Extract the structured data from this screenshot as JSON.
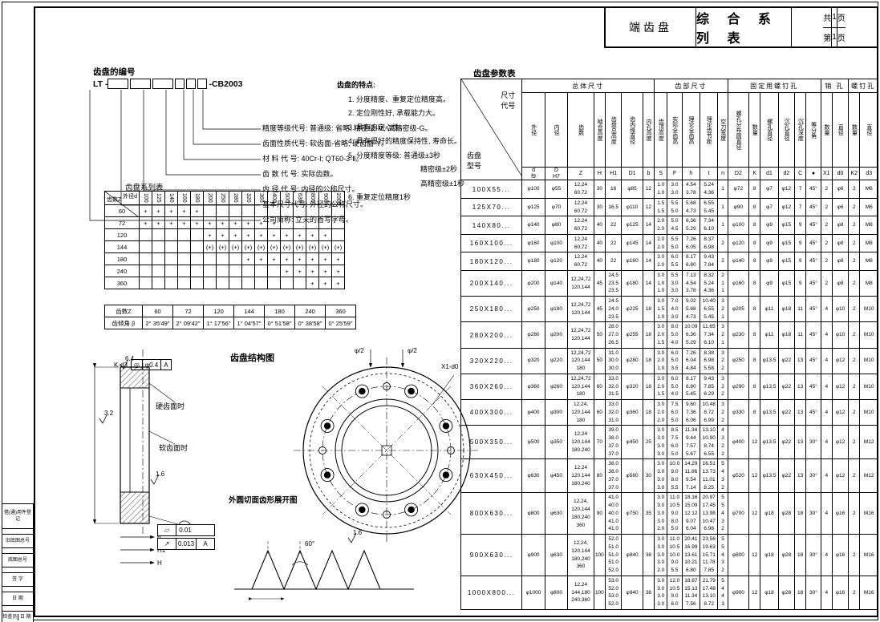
{
  "sheet": {
    "product": "端齿盘",
    "title": "综 合 系 列 表",
    "pages_total_label": "共",
    "pages_total": "1",
    "page_label": "页",
    "page_current_label": "第",
    "page_current": "1"
  },
  "margin_blocks": [
    "借(通)用件登记",
    "旧底图总号",
    "底图总号",
    "签  字",
    "日  期"
  ],
  "margin_bottom": {
    "left": "检查员",
    "right": "日 期"
  },
  "numbering": {
    "title": "齿盘的编号",
    "prefix": "LT -",
    "suffix": "-CB2003",
    "legend": [
      "精度等级代号: 普通级: 省略; 精密级-M; 高精密级-G。",
      "齿面性质代号: 软齿面-省略; 硬齿面-Y。",
      "材 料 代 号: 40Cr-Ⅰ; QT60-3-Ⅱ。",
      "齿 数 代 号: 实际齿数。",
      "内 径 代 号: 内径的公称尺寸。",
      "基本尺寸代号: 外径的公称尺寸。",
      "公司简称: 立天的首写字母。"
    ]
  },
  "features": {
    "title": "齿盘的特点:",
    "items": [
      "1. 分度精度、重复定位精度高。",
      "2. 定位刚性好, 承载能力大。",
      "3. 具有自定心性。",
      "4. 具有很好的精度保持性, 寿命长。",
      "5. 分度精度等级: 普通级±3秒",
      "精密级±2秒",
      "高精密级±1秒",
      "6. 重复定位精度1秒"
    ]
  },
  "series_table": {
    "title": "齿盘系列表",
    "corner_top": "外径d",
    "corner_bottom": "齿数Z",
    "columns": [
      "100",
      "125",
      "140",
      "160",
      "180",
      "200",
      "250",
      "280",
      "320",
      "360",
      "400",
      "500",
      "630",
      "800",
      "900",
      "1000"
    ],
    "rows": [
      {
        "z": "60",
        "marks": [
          "+",
          "+",
          "+",
          "+",
          "+",
          "",
          "",
          "",
          "",
          "",
          "",
          "",
          "",
          "",
          "",
          ""
        ]
      },
      {
        "z": "72",
        "marks": [
          "+",
          "+",
          "+",
          "+",
          "+",
          "+",
          "+",
          "+",
          "+",
          "+",
          "+",
          "",
          "",
          "",
          "",
          ""
        ]
      },
      {
        "z": "120",
        "marks": [
          "",
          "",
          "",
          "",
          "",
          "+",
          "+",
          "+",
          "+",
          "+",
          "+",
          "+",
          "+",
          "+",
          "+",
          ""
        ]
      },
      {
        "z": "144",
        "marks": [
          "",
          "",
          "",
          "",
          "",
          "(+)",
          "(+)",
          "(+)",
          "(+)",
          "(+)",
          "(+)",
          "(+)",
          "(+)",
          "(+)",
          "(+)",
          "(+)"
        ]
      },
      {
        "z": "180",
        "marks": [
          "",
          "",
          "",
          "",
          "",
          "",
          "",
          "",
          "+",
          "+",
          "+",
          "+",
          "+",
          "+",
          "+",
          "+"
        ]
      },
      {
        "z": "240",
        "marks": [
          "",
          "",
          "",
          "",
          "",
          "",
          "",
          "",
          "",
          "",
          "",
          "+",
          "+",
          "+",
          "+",
          "+"
        ]
      },
      {
        "z": "360",
        "marks": [
          "",
          "",
          "",
          "",
          "",
          "",
          "",
          "",
          "",
          "",
          "",
          "",
          "",
          "+",
          "+",
          "+"
        ]
      }
    ]
  },
  "angle_table": {
    "header_label": "齿数Z",
    "row_label": "齿倾角 β",
    "columns": [
      "60",
      "72",
      "120",
      "144",
      "180",
      "240",
      "360"
    ],
    "values": [
      "2° 35′49″",
      "2° 09′42″",
      "1° 17′56″",
      "1° 04′57″",
      "0° 51′58″",
      "0° 38′58″",
      "0° 25′59″"
    ]
  },
  "figures": {
    "structure_title": "齿盘结构图",
    "profile_title": "外圆切面齿形展开图",
    "hard_face_label": "硬齿面时",
    "soft_face_label": "软齿面时",
    "callout_screw": "K-d3",
    "callout_pin": "X1-d0",
    "datum_label": "A",
    "pos_tol_symbol": "◎",
    "pos_tol_value": "φ0.4",
    "pos_tol_datum": "A",
    "tol1_symbol": "▱",
    "tol1_value": "0.01",
    "tol2_symbol": "↗",
    "tol2_value": "0.013",
    "tol2_datum": "A",
    "dim_phi2_left": "φ/2",
    "dim_phi2_right": "φ/2",
    "angle_60": "60°",
    "rough_1": "6.4",
    "rough_2": "3.2",
    "rough_3": "1.6",
    "dim_b": "b",
    "dim_h1": "H1",
    "dim_h": "H"
  },
  "param_table": {
    "title": "齿盘参数表",
    "corner": {
      "top": "尺寸",
      "top2": "代号",
      "bottom": "齿盘",
      "bottom2": "型号"
    },
    "groups": [
      "总体尺寸",
      "齿部尺寸",
      "固定用螺钉孔",
      "销 孔",
      "螺钉孔"
    ],
    "group_spans": [
      7,
      5,
      6,
      2,
      2
    ],
    "columns": [
      "外径",
      "内径",
      "齿数",
      "啮合高度",
      "齿盘总高度",
      "齿内缘直径",
      "内孔高度",
      "齿顶高度",
      "实际全齿高",
      "理论全齿高",
      "理论齿节距",
      "空刀宽度",
      "螺孔分布圆直径",
      "数量",
      "螺孔直径",
      "沉孔直径",
      "沉孔深度",
      "等分角",
      "数量",
      "直径",
      "数量",
      "直径"
    ],
    "symbols": [
      "d\nf9",
      "D\nH7",
      "Z",
      "H",
      "H1",
      "D1",
      "b",
      "S",
      "F",
      "h",
      "t",
      "n",
      "D2",
      "K",
      "d1",
      "d2",
      "C",
      "●",
      "X1",
      "d0",
      "K2",
      "d3"
    ],
    "rows": [
      {
        "model": "100X55...",
        "values": [
          "φ100",
          "φ55",
          "12,24\n60,72",
          "30",
          "16",
          "φ85",
          "12",
          "1.0\n1.0",
          "3.0\n3.0",
          "4.54\n3.78",
          "5.24\n4.36",
          "1",
          "φ72",
          "8",
          "φ7",
          "φ12",
          "7",
          "45°",
          "2",
          "φ6",
          "2",
          "M6"
        ]
      },
      {
        "model": "125X70...",
        "values": [
          "φ125",
          "φ70",
          "12,24\n60,72",
          "30",
          "16.5",
          "φ110",
          "12",
          "1.5\n1.5",
          "5.5\n5.0",
          "5.68\n4.73",
          "6.55\n5.45",
          "1",
          "φ90",
          "8",
          "φ7",
          "φ12",
          "7",
          "45°",
          "2",
          "φ6",
          "2",
          "M6"
        ]
      },
      {
        "model": "140X80...",
        "values": [
          "φ140",
          "φ80",
          "12,24\n60,72",
          "40",
          "22",
          "φ125",
          "14",
          "2.0\n2.0",
          "5.0\n4.5",
          "6.36\n5.29",
          "7.34\n6.10",
          "1",
          "φ100",
          "8",
          "φ9",
          "φ15",
          "9",
          "45°",
          "2",
          "φ8",
          "2",
          "M8"
        ]
      },
      {
        "model": "160X100...",
        "values": [
          "φ160",
          "φ100",
          "12,24\n60,72",
          "40",
          "22",
          "φ145",
          "14",
          "2.0\n2.0",
          "5.5\n5.0",
          "7.26\n6.05",
          "8.37\n6.98",
          "2",
          "φ120",
          "8",
          "φ9",
          "φ15",
          "9",
          "45°",
          "2",
          "φ8",
          "2",
          "M8"
        ]
      },
      {
        "model": "180X120...",
        "values": [
          "φ180",
          "φ120",
          "12,24\n60,72",
          "40",
          "22",
          "φ160",
          "14",
          "3.0\n2.0",
          "6.0\n5.5",
          "8.17\n6.80",
          "9.43\n7.84",
          "2",
          "φ140",
          "8",
          "φ9",
          "φ15",
          "9",
          "45°",
          "2",
          "φ8",
          "2",
          "M8"
        ]
      },
      {
        "model": "200X140...",
        "values": [
          "φ200",
          "φ140",
          "12,24,72\n120,144",
          "45",
          "24.5\n23.5\n23.5",
          "φ180",
          "14",
          "3.0\n1.0\n1.0",
          "5.5\n3.0\n3.0",
          "7.13\n4.54\n3.78",
          "8.32\n5.24\n4.36",
          "2\n1\n1",
          "φ160",
          "8",
          "φ9",
          "φ15",
          "9",
          "45°",
          "2",
          "φ8",
          "2",
          "M8"
        ]
      },
      {
        "model": "250X180...",
        "values": [
          "φ250",
          "φ180",
          "12,24,72\n120,144",
          "45",
          "24.5\n24.0\n23.5",
          "φ225",
          "18",
          "3.0\n1.5\n1.0",
          "7.0\n4.0\n3.0",
          "9.02\n5.68\n4.73",
          "10.40\n6.55\n5.45",
          "3\n2\n1",
          "φ205",
          "8",
          "φ11",
          "φ18",
          "11",
          "45°",
          "4",
          "φ10",
          "2",
          "M10"
        ]
      },
      {
        "model": "280X200...",
        "values": [
          "φ280",
          "φ200",
          "12,24,72\n120,144",
          "50",
          "28.0\n27.0\n26.5",
          "φ255",
          "18",
          "3.0\n2.0\n1.5",
          "8.0\n5.0\n4.0",
          "10.09\n6.36\n5.29",
          "11.65\n7.34\n6.10",
          "3\n2\n1",
          "φ230",
          "8",
          "φ11",
          "φ18",
          "11",
          "45°",
          "4",
          "φ10",
          "2",
          "M10"
        ]
      },
      {
        "model": "320X220...",
        "values": [
          "φ320",
          "φ220",
          "12,24,72\n120,144\n180",
          "50",
          "31.0\n30.0\n30.0",
          "φ280",
          "18",
          "3.0\n2.0\n1.0",
          "6.0\n5.0\n3.5",
          "7.26\n6.04\n4.84",
          "8.38\n6.98\n5.58",
          "3\n2\n2",
          "φ250",
          "8",
          "φ13.5",
          "φ22",
          "13",
          "45°",
          "4",
          "φ12",
          "2",
          "M10"
        ]
      },
      {
        "model": "360X260...",
        "values": [
          "φ360",
          "φ260",
          "12,24,72\n120,144\n180",
          "60",
          "33.0\n32.0\n31.5",
          "φ320",
          "18",
          "3.0\n2.0\n1.5",
          "6.0\n5.0\n4.0",
          "8.17\n6.80\n5.45",
          "9.43\n7.85\n6.29",
          "3\n2\n2",
          "φ290",
          "8",
          "φ13.5",
          "φ22",
          "13",
          "45°",
          "4",
          "φ12",
          "2",
          "M10"
        ]
      },
      {
        "model": "400X300...",
        "values": [
          "φ400",
          "φ300",
          "12,24,\n120,144\n180",
          "60",
          "33.0\n32.0\n31.0",
          "φ360",
          "18",
          "3.0\n2.0\n2.0",
          "7.5\n6.0\n5.0",
          "9.60\n7.36\n6.06",
          "10.48\n8.72\n6.99",
          "3\n2\n2",
          "φ330",
          "8",
          "φ13.5",
          "φ22",
          "13",
          "45°",
          "4",
          "φ12",
          "2",
          "M10"
        ]
      },
      {
        "model": "500X350...",
        "values": [
          "φ500",
          "φ350",
          "12,24\n120,144\n180,240",
          "70",
          "39.0\n38.0\n37.0\n37.0",
          "φ450",
          "25",
          "3.0\n3.0\n3.0\n3.0",
          "8.5\n7.5\n6.0\n5.0",
          "11.34\n9.44\n7.57\n5.67",
          "13.10\n10.90\n8.74\n6.55",
          "4\n3\n2\n2",
          "φ400",
          "12",
          "φ13.5",
          "φ22",
          "13",
          "30°",
          "4",
          "φ12",
          "2",
          "M12"
        ]
      },
      {
        "model": "630X450...",
        "values": [
          "φ630",
          "φ450",
          "12,24\n120,144\n180,240",
          "80",
          "38.0\n38.0\n37.0\n37.0",
          "φ580",
          "30",
          "3.0\n3.0\n3.0\n3.0",
          "10.0\n9.0\n8.0\n5.5",
          "14.29\n11.86\n9.54\n7.14",
          "16.51\n13.73\n11.01\n8.25",
          "5\n4\n3\n2",
          "φ520",
          "12",
          "φ13.5",
          "φ22",
          "13",
          "30°",
          "4",
          "φ12",
          "2",
          "M12"
        ]
      },
      {
        "model": "800X630...",
        "values": [
          "φ800",
          "φ630",
          "12,24,\n120,144\n180,240\n360",
          "90",
          "41.0\n40.0\n40.0\n41.0\n41.0",
          "φ750",
          "35",
          "3.0\n3.0\n3.0\n3.0\n2.0",
          "11.0\n10.5\n9.0\n8.0\n5.0",
          "18.16\n15.09\n12.12\n9.07\n6.04",
          "20.97\n17.45\n13.98\n10.47\n6.98",
          "5\n5\n4\n3\n2",
          "φ700",
          "12",
          "φ18",
          "φ28",
          "18",
          "30°",
          "4",
          "φ16",
          "2",
          "M16"
        ]
      },
      {
        "model": "900X630...",
        "values": [
          "φ900",
          "φ630",
          "12,24,\n120,144\n180,240\n360",
          "100",
          "52.0\n51.0\n51.0\n51.0\n52.0",
          "φ840",
          "38",
          "3.0\n3.0\n3.0\n3.0\n2.0",
          "11.0\n10.5\n10.0\n9.0\n5.5",
          "20.41\n16.99\n13.61\n10.21\n6.80",
          "23.56\n19.63\n15.71\n11.78\n7.85",
          "5\n5\n4\n3\n2",
          "φ800",
          "12",
          "φ18",
          "φ28",
          "18",
          "30°",
          "4",
          "φ16",
          "2",
          "M16"
        ]
      },
      {
        "model": "1000X800...",
        "values": [
          "φ1000",
          "φ800",
          "12,24\n144,180\n240,360",
          "100",
          "53.0\n52.0\n53.0\n52.0",
          "φ940",
          "38",
          "3.0\n3.0\n3.0\n3.0",
          "12.0\n10.5\n9.0\n6.0",
          "18.87\n15.13\n11.34\n7.56",
          "21.79\n17.48\n13.10\n8.72",
          "5\n4\n4\n3",
          "φ900",
          "12",
          "φ18",
          "φ28",
          "18",
          "30°",
          "4",
          "φ16",
          "2",
          "M16"
        ]
      }
    ]
  }
}
